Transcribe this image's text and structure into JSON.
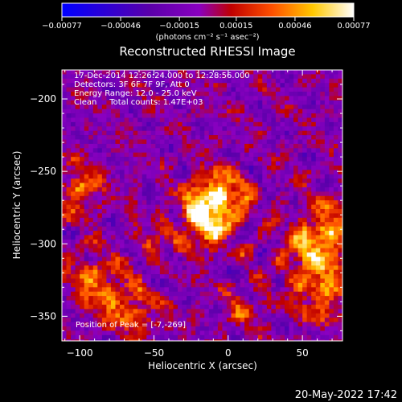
{
  "chart_data": {
    "type": "heatmap",
    "title": "Reconstructed RHESSI Image",
    "xlabel": "Heliocentric X (arcsec)",
    "ylabel": "Heliocentric Y (arcsec)",
    "xlim": [
      -112,
      77
    ],
    "ylim": [
      -367,
      -180
    ],
    "x_ticks": [
      -100,
      -50,
      0,
      50
    ],
    "y_ticks": [
      -200,
      -250,
      -300,
      -350
    ],
    "x_tick_labels": [
      "−100",
      "−50",
      "0",
      "50"
    ],
    "y_tick_labels": [
      "−200",
      "−250",
      "−300",
      "−350"
    ],
    "colorbar": {
      "range": [
        -0.00077,
        0.00077
      ],
      "ticks": [
        -0.00077,
        -0.00046,
        -0.00015,
        0.00015,
        0.00046,
        0.00077
      ],
      "tick_labels": [
        "−0.00077",
        "−0.00046",
        "−0.00015",
        "0.00015",
        "0.00046",
        "0.00077"
      ],
      "unit_label": "(photons cm⁻² s⁻¹ asec⁻²)",
      "colors": [
        "#0000ff",
        "#5a00aa",
        "#8a00c0",
        "#c00000",
        "#ff5000",
        "#ffc800",
        "#ffffff"
      ]
    },
    "annotations": {
      "time": "17-Dec-2014 12:26:24.000 to 12:28:56.000",
      "detectors": "Detectors: 3F 6F 7F 9F, Att 0",
      "energy": "Energy Range: 12.0 - 25.0 keV",
      "clean": "Clean     Total counts: 1.47E+03",
      "peak": "Position of Peak = [-7,-269]"
    },
    "peak_position": [
      -7,
      -269
    ],
    "peak_value": 0.00077
  },
  "footer": {
    "date": "20-May-2022 17:42"
  }
}
